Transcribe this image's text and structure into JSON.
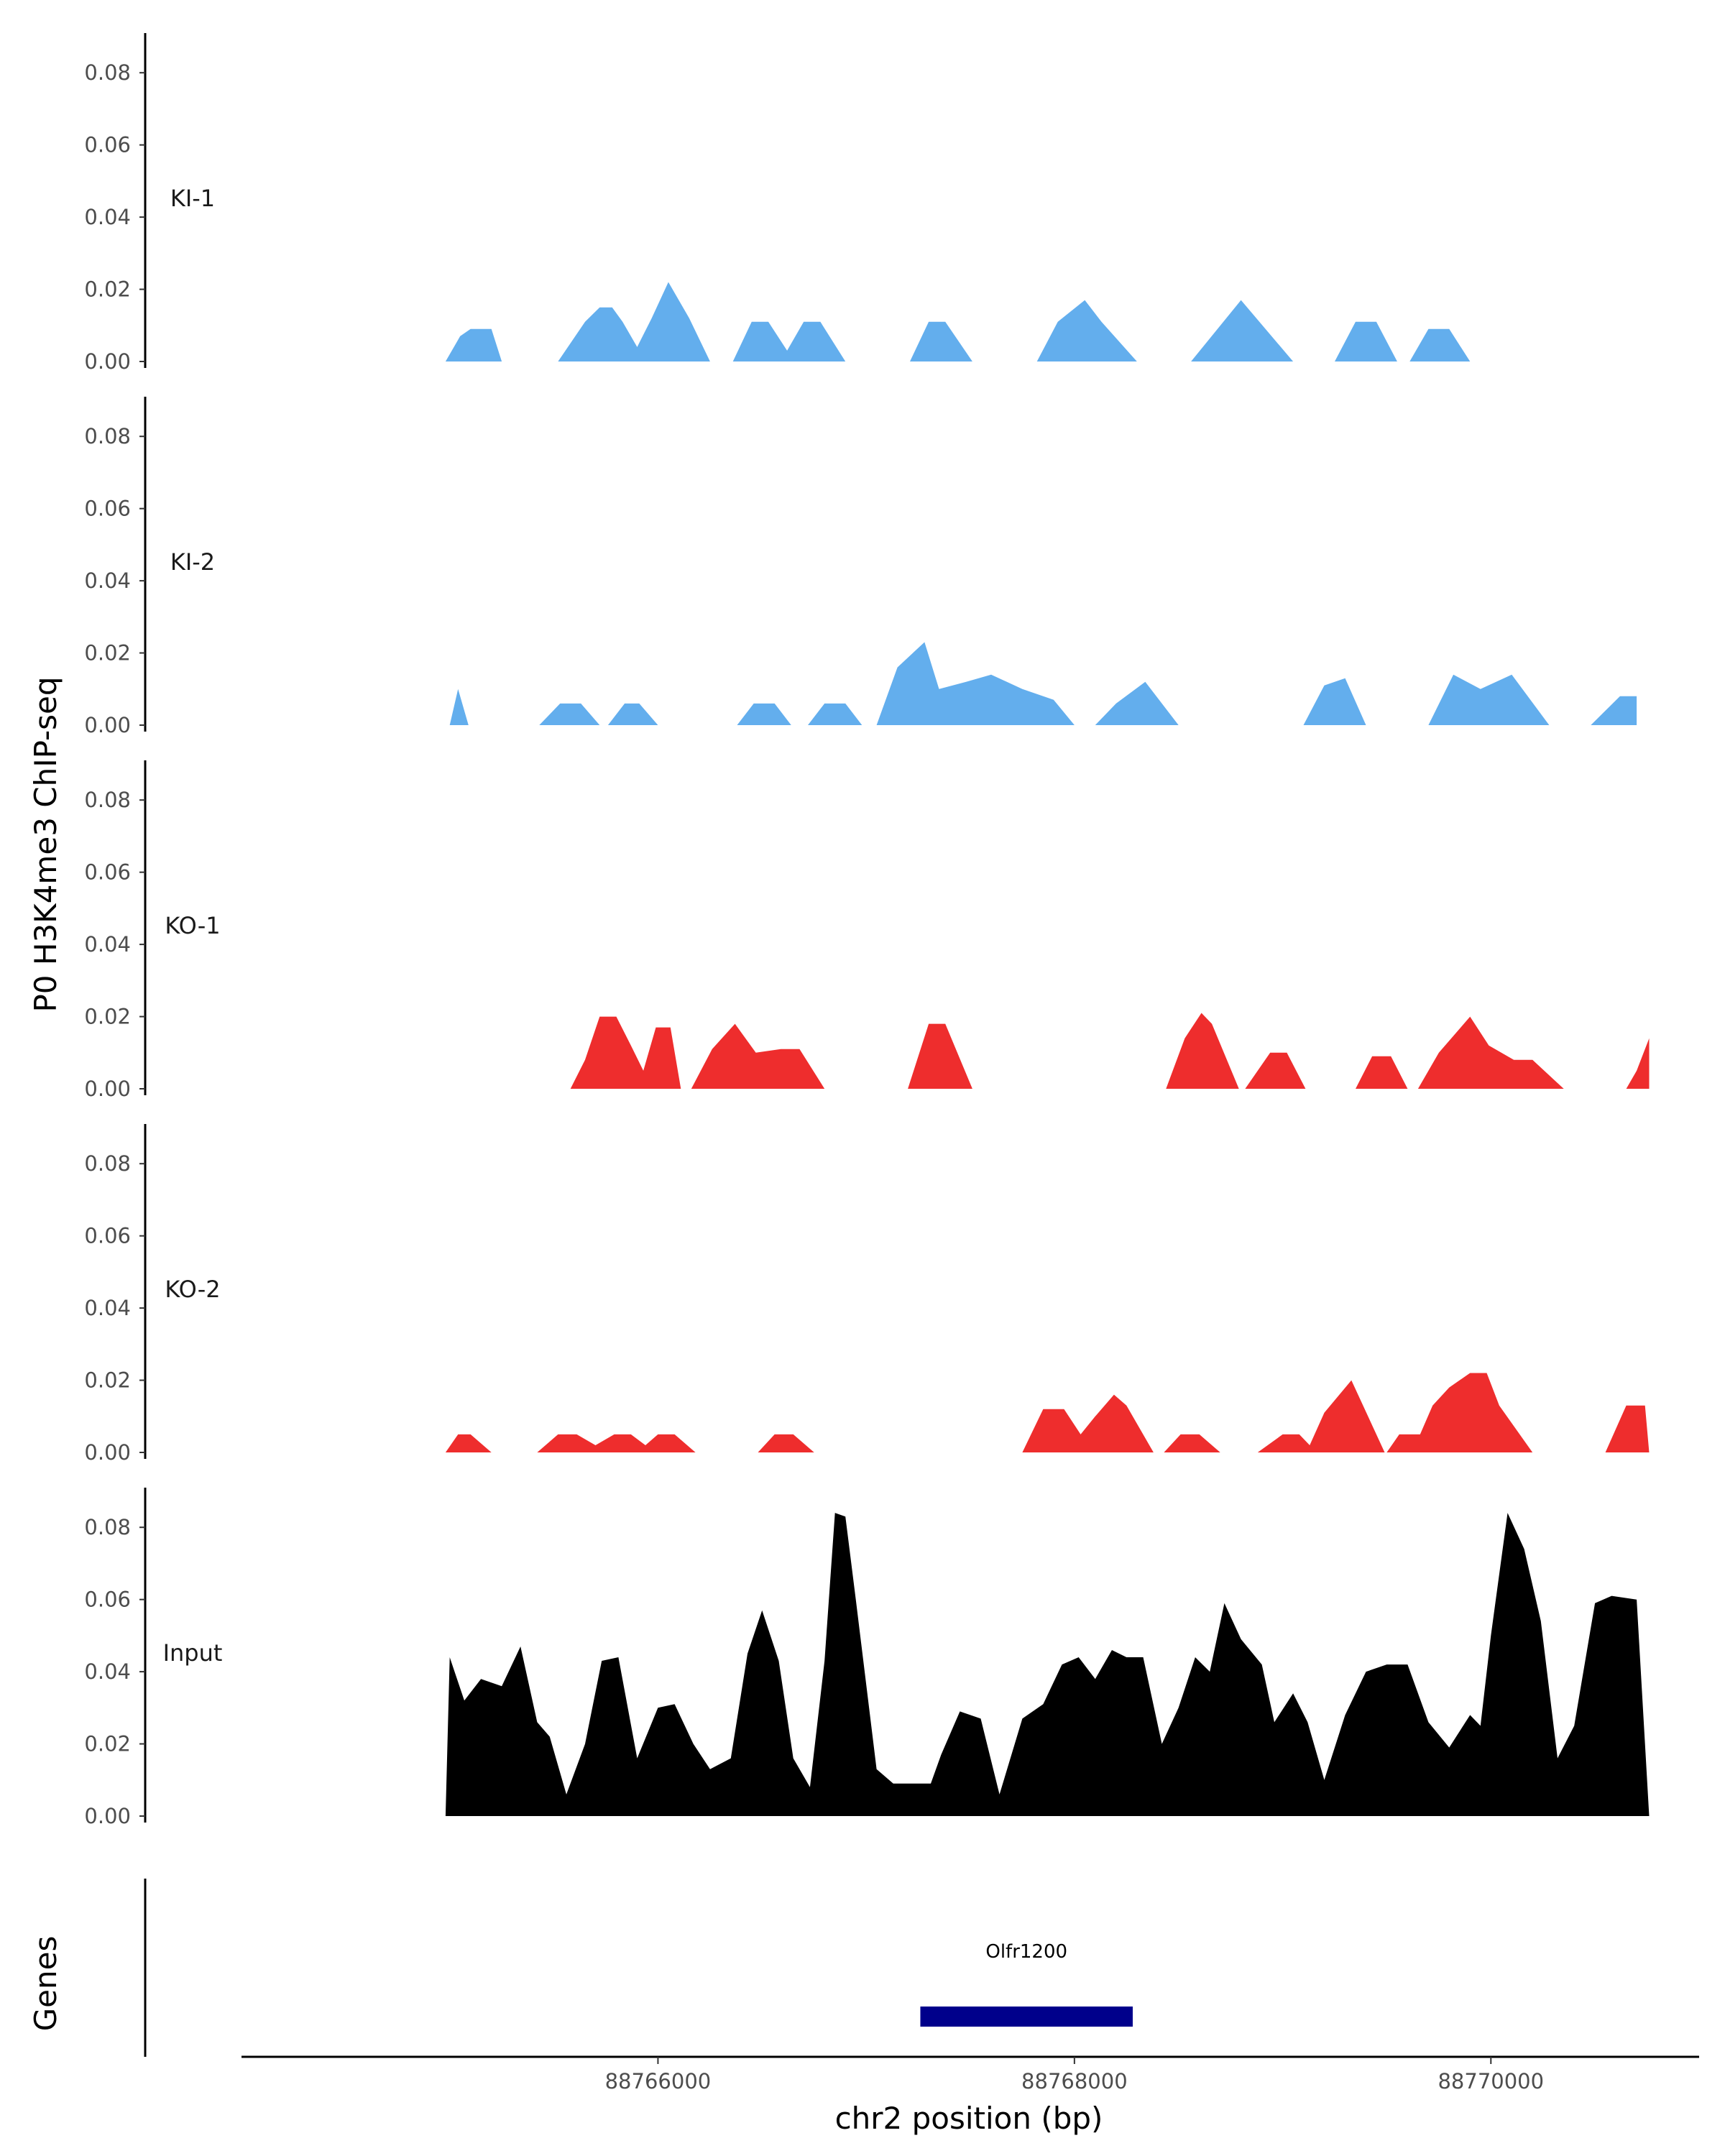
{
  "chart_data": {
    "type": "area",
    "ylabel": "P0 H3K4me3 ChIP-seq",
    "xlabel": "chr2 position (bp)",
    "gene_track_label": "Genes",
    "x_range": [
      88764000,
      88771000
    ],
    "y_range": [
      0,
      0.09
    ],
    "y_ticks": [
      0.0,
      0.02,
      0.04,
      0.06,
      0.08
    ],
    "y_tick_labels": [
      "0.00",
      "0.02",
      "0.04",
      "0.06",
      "0.08"
    ],
    "x_ticks": [
      88766000,
      88768000,
      88770000
    ],
    "x_tick_labels": [
      "88766000",
      "88768000",
      "88770000"
    ],
    "colors": {
      "KI": "#63aeed",
      "KO": "#ee2d2d",
      "Input": "#000000",
      "gene": "#00008b"
    },
    "tracks": [
      {
        "name": "KI-1",
        "color": "#63aeed",
        "points": [
          [
            88764980,
            0
          ],
          [
            88765050,
            0.007
          ],
          [
            88765100,
            0.009
          ],
          [
            88765200,
            0.009
          ],
          [
            88765250,
            0
          ],
          [
            88765520,
            0
          ],
          [
            88765650,
            0.011
          ],
          [
            88765720,
            0.015
          ],
          [
            88765780,
            0.015
          ],
          [
            88765830,
            0.011
          ],
          [
            88765900,
            0.004
          ],
          [
            88765970,
            0.012
          ],
          [
            88766050,
            0.022
          ],
          [
            88766150,
            0.012
          ],
          [
            88766250,
            0
          ],
          [
            88766360,
            0
          ],
          [
            88766450,
            0.011
          ],
          [
            88766530,
            0.011
          ],
          [
            88766620,
            0.003
          ],
          [
            88766700,
            0.011
          ],
          [
            88766780,
            0.011
          ],
          [
            88766900,
            0
          ],
          [
            88767210,
            0
          ],
          [
            88767300,
            0.011
          ],
          [
            88767380,
            0.011
          ],
          [
            88767510,
            0
          ],
          [
            88767820,
            0
          ],
          [
            88767920,
            0.011
          ],
          [
            88768050,
            0.017
          ],
          [
            88768130,
            0.011
          ],
          [
            88768300,
            0
          ],
          [
            88768560,
            0
          ],
          [
            88768800,
            0.017
          ],
          [
            88769050,
            0
          ],
          [
            88769250,
            0
          ],
          [
            88769350,
            0.011
          ],
          [
            88769450,
            0.011
          ],
          [
            88769550,
            0
          ],
          [
            88769610,
            0
          ],
          [
            88769700,
            0.009
          ],
          [
            88769800,
            0.009
          ],
          [
            88769900,
            0
          ]
        ]
      },
      {
        "name": "KI-2",
        "color": "#63aeed",
        "points": [
          [
            88765000,
            0
          ],
          [
            88765040,
            0.01
          ],
          [
            88765090,
            0
          ],
          [
            88765430,
            0
          ],
          [
            88765530,
            0.006
          ],
          [
            88765630,
            0.006
          ],
          [
            88765720,
            0
          ],
          [
            88765760,
            0
          ],
          [
            88765840,
            0.006
          ],
          [
            88765910,
            0.006
          ],
          [
            88766000,
            0
          ],
          [
            88766380,
            0
          ],
          [
            88766460,
            0.006
          ],
          [
            88766560,
            0.006
          ],
          [
            88766640,
            0
          ],
          [
            88766720,
            0
          ],
          [
            88766800,
            0.006
          ],
          [
            88766900,
            0.006
          ],
          [
            88766980,
            0
          ],
          [
            88767050,
            0
          ],
          [
            88767150,
            0.016
          ],
          [
            88767280,
            0.023
          ],
          [
            88767350,
            0.01
          ],
          [
            88767480,
            0.012
          ],
          [
            88767600,
            0.014
          ],
          [
            88767750,
            0.01
          ],
          [
            88767900,
            0.007
          ],
          [
            88768000,
            0
          ],
          [
            88768100,
            0
          ],
          [
            88768200,
            0.006
          ],
          [
            88768340,
            0.012
          ],
          [
            88768500,
            0
          ],
          [
            88769100,
            0
          ],
          [
            88769200,
            0.011
          ],
          [
            88769300,
            0.013
          ],
          [
            88769400,
            0
          ],
          [
            88769700,
            0
          ],
          [
            88769820,
            0.014
          ],
          [
            88769950,
            0.01
          ],
          [
            88770100,
            0.014
          ],
          [
            88770280,
            0
          ],
          [
            88770480,
            0
          ],
          [
            88770620,
            0.008
          ],
          [
            88770700,
            0.008
          ],
          [
            88770700,
            0
          ]
        ]
      },
      {
        "name": "KO-1",
        "color": "#ee2d2d",
        "points": [
          [
            88765580,
            0
          ],
          [
            88765650,
            0.008
          ],
          [
            88765720,
            0.02
          ],
          [
            88765800,
            0.02
          ],
          [
            88765870,
            0.012
          ],
          [
            88765930,
            0.005
          ],
          [
            88765990,
            0.017
          ],
          [
            88766060,
            0.017
          ],
          [
            88766110,
            0
          ],
          [
            88766160,
            0
          ],
          [
            88766260,
            0.011
          ],
          [
            88766370,
            0.018
          ],
          [
            88766470,
            0.01
          ],
          [
            88766590,
            0.011
          ],
          [
            88766680,
            0.011
          ],
          [
            88766800,
            0
          ],
          [
            88767200,
            0
          ],
          [
            88767300,
            0.018
          ],
          [
            88767380,
            0.018
          ],
          [
            88767510,
            0
          ],
          [
            88768440,
            0
          ],
          [
            88768530,
            0.014
          ],
          [
            88768610,
            0.021
          ],
          [
            88768660,
            0.018
          ],
          [
            88768790,
            0
          ],
          [
            88768820,
            0
          ],
          [
            88768940,
            0.01
          ],
          [
            88769020,
            0.01
          ],
          [
            88769110,
            0
          ],
          [
            88769350,
            0
          ],
          [
            88769430,
            0.009
          ],
          [
            88769520,
            0.009
          ],
          [
            88769600,
            0
          ],
          [
            88769650,
            0
          ],
          [
            88769750,
            0.01
          ],
          [
            88769900,
            0.02
          ],
          [
            88769990,
            0.012
          ],
          [
            88770110,
            0.008
          ],
          [
            88770200,
            0.008
          ],
          [
            88770350,
            0
          ],
          [
            88770650,
            0
          ],
          [
            88770700,
            0.005
          ],
          [
            88770760,
            0.014
          ],
          [
            88770760,
            0
          ]
        ]
      },
      {
        "name": "KO-2",
        "color": "#ee2d2d",
        "points": [
          [
            88764980,
            0
          ],
          [
            88765040,
            0.005
          ],
          [
            88765100,
            0.005
          ],
          [
            88765200,
            0
          ],
          [
            88765420,
            0
          ],
          [
            88765520,
            0.005
          ],
          [
            88765610,
            0.005
          ],
          [
            88765700,
            0.002
          ],
          [
            88765790,
            0.005
          ],
          [
            88765870,
            0.005
          ],
          [
            88765940,
            0.002
          ],
          [
            88766000,
            0.005
          ],
          [
            88766080,
            0.005
          ],
          [
            88766180,
            0
          ],
          [
            88766480,
            0
          ],
          [
            88766560,
            0.005
          ],
          [
            88766650,
            0.005
          ],
          [
            88766750,
            0
          ],
          [
            88767750,
            0
          ],
          [
            88767850,
            0.012
          ],
          [
            88767950,
            0.012
          ],
          [
            88768030,
            0.005
          ],
          [
            88768100,
            0.01
          ],
          [
            88768190,
            0.016
          ],
          [
            88768250,
            0.013
          ],
          [
            88768380,
            0
          ],
          [
            88768430,
            0
          ],
          [
            88768510,
            0.005
          ],
          [
            88768600,
            0.005
          ],
          [
            88768700,
            0
          ],
          [
            88768880,
            0
          ],
          [
            88769000,
            0.005
          ],
          [
            88769080,
            0.005
          ],
          [
            88769130,
            0.002
          ],
          [
            88769200,
            0.011
          ],
          [
            88769330,
            0.02
          ],
          [
            88769490,
            0
          ],
          [
            88769500,
            0
          ],
          [
            88769560,
            0.005
          ],
          [
            88769660,
            0.005
          ],
          [
            88769720,
            0.013
          ],
          [
            88769800,
            0.018
          ],
          [
            88769900,
            0.022
          ],
          [
            88769980,
            0.022
          ],
          [
            88770040,
            0.013
          ],
          [
            88770200,
            0
          ],
          [
            88770550,
            0
          ],
          [
            88770650,
            0.013
          ],
          [
            88770740,
            0.013
          ],
          [
            88770760,
            0
          ]
        ]
      },
      {
        "name": "Input",
        "color": "#000000",
        "points": [
          [
            88764980,
            0
          ],
          [
            88765000,
            0.044
          ],
          [
            88765070,
            0.032
          ],
          [
            88765150,
            0.038
          ],
          [
            88765250,
            0.036
          ],
          [
            88765340,
            0.047
          ],
          [
            88765420,
            0.026
          ],
          [
            88765480,
            0.022
          ],
          [
            88765560,
            0.006
          ],
          [
            88765650,
            0.02
          ],
          [
            88765730,
            0.043
          ],
          [
            88765810,
            0.044
          ],
          [
            88765900,
            0.016
          ],
          [
            88766000,
            0.03
          ],
          [
            88766080,
            0.031
          ],
          [
            88766170,
            0.02
          ],
          [
            88766250,
            0.013
          ],
          [
            88766350,
            0.016
          ],
          [
            88766430,
            0.045
          ],
          [
            88766500,
            0.057
          ],
          [
            88766580,
            0.043
          ],
          [
            88766650,
            0.016
          ],
          [
            88766730,
            0.008
          ],
          [
            88766800,
            0.043
          ],
          [
            88766850,
            0.084
          ],
          [
            88766900,
            0.083
          ],
          [
            88766950,
            0.06
          ],
          [
            88767050,
            0.013
          ],
          [
            88767130,
            0.009
          ],
          [
            88767240,
            0.009
          ],
          [
            88767310,
            0.009
          ],
          [
            88767360,
            0.017
          ],
          [
            88767450,
            0.029
          ],
          [
            88767550,
            0.027
          ],
          [
            88767640,
            0.006
          ],
          [
            88767750,
            0.027
          ],
          [
            88767850,
            0.031
          ],
          [
            88767940,
            0.042
          ],
          [
            88768020,
            0.044
          ],
          [
            88768100,
            0.038
          ],
          [
            88768180,
            0.046
          ],
          [
            88768250,
            0.044
          ],
          [
            88768330,
            0.044
          ],
          [
            88768420,
            0.02
          ],
          [
            88768500,
            0.03
          ],
          [
            88768580,
            0.044
          ],
          [
            88768650,
            0.04
          ],
          [
            88768720,
            0.059
          ],
          [
            88768800,
            0.049
          ],
          [
            88768900,
            0.042
          ],
          [
            88768960,
            0.026
          ],
          [
            88769050,
            0.034
          ],
          [
            88769120,
            0.026
          ],
          [
            88769200,
            0.01
          ],
          [
            88769300,
            0.028
          ],
          [
            88769400,
            0.04
          ],
          [
            88769500,
            0.042
          ],
          [
            88769600,
            0.042
          ],
          [
            88769700,
            0.026
          ],
          [
            88769800,
            0.019
          ],
          [
            88769900,
            0.028
          ],
          [
            88769950,
            0.025
          ],
          [
            88770000,
            0.05
          ],
          [
            88770080,
            0.084
          ],
          [
            88770160,
            0.074
          ],
          [
            88770240,
            0.054
          ],
          [
            88770320,
            0.016
          ],
          [
            88770400,
            0.025
          ],
          [
            88770500,
            0.059
          ],
          [
            88770580,
            0.061
          ],
          [
            88770700,
            0.06
          ],
          [
            88770760,
            0
          ]
        ]
      }
    ],
    "genes": [
      {
        "name": "Olfr1200",
        "start": 88767260,
        "end": 88768280
      }
    ]
  }
}
